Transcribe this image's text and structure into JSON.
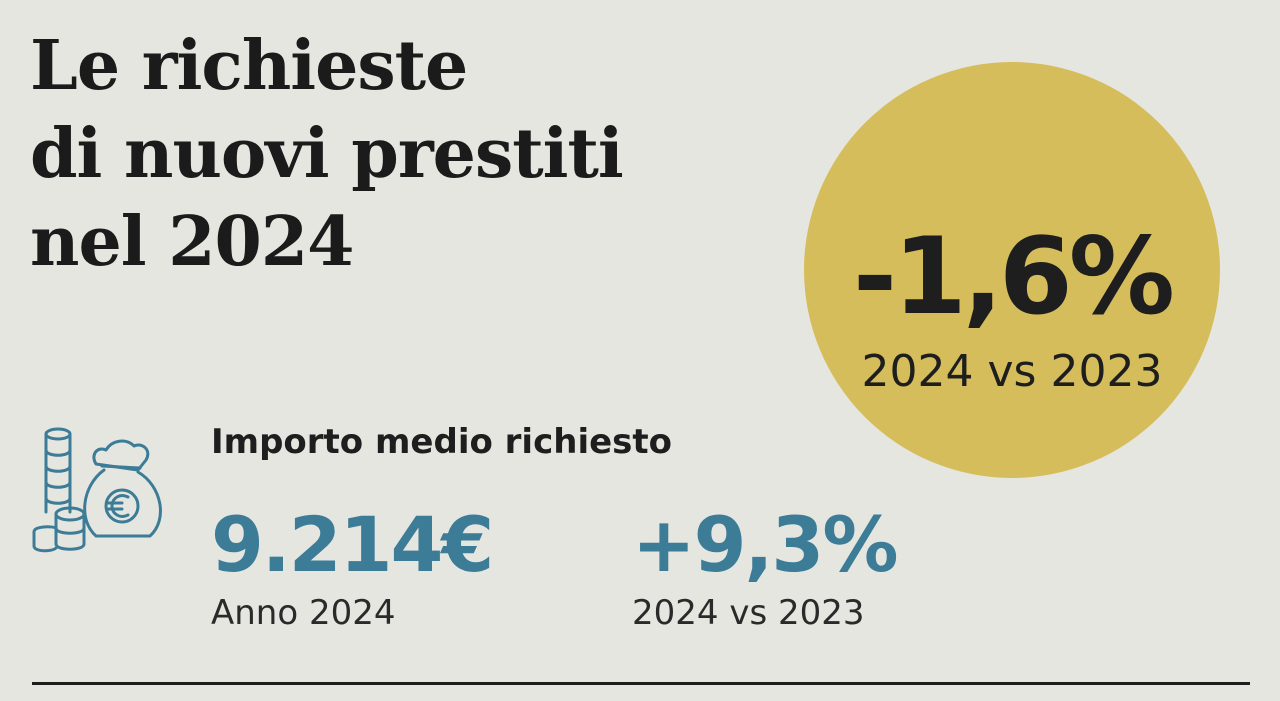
{
  "title": {
    "line1": "Le richieste",
    "line2": "di nuovi prestiti",
    "line3": "nel 2024"
  },
  "highlight": {
    "value": "-1,6%",
    "label": "2024 vs 2023",
    "color": "#d6bd5c"
  },
  "section": {
    "icon": "money-bag-coins-icon",
    "heading": "Importo medio richiesto",
    "stats": [
      {
        "value": "9.214€",
        "label": "Anno 2024"
      },
      {
        "value": "+9,3%",
        "label": "2024 vs 2023"
      }
    ],
    "accent_color": "#3c7c96"
  }
}
